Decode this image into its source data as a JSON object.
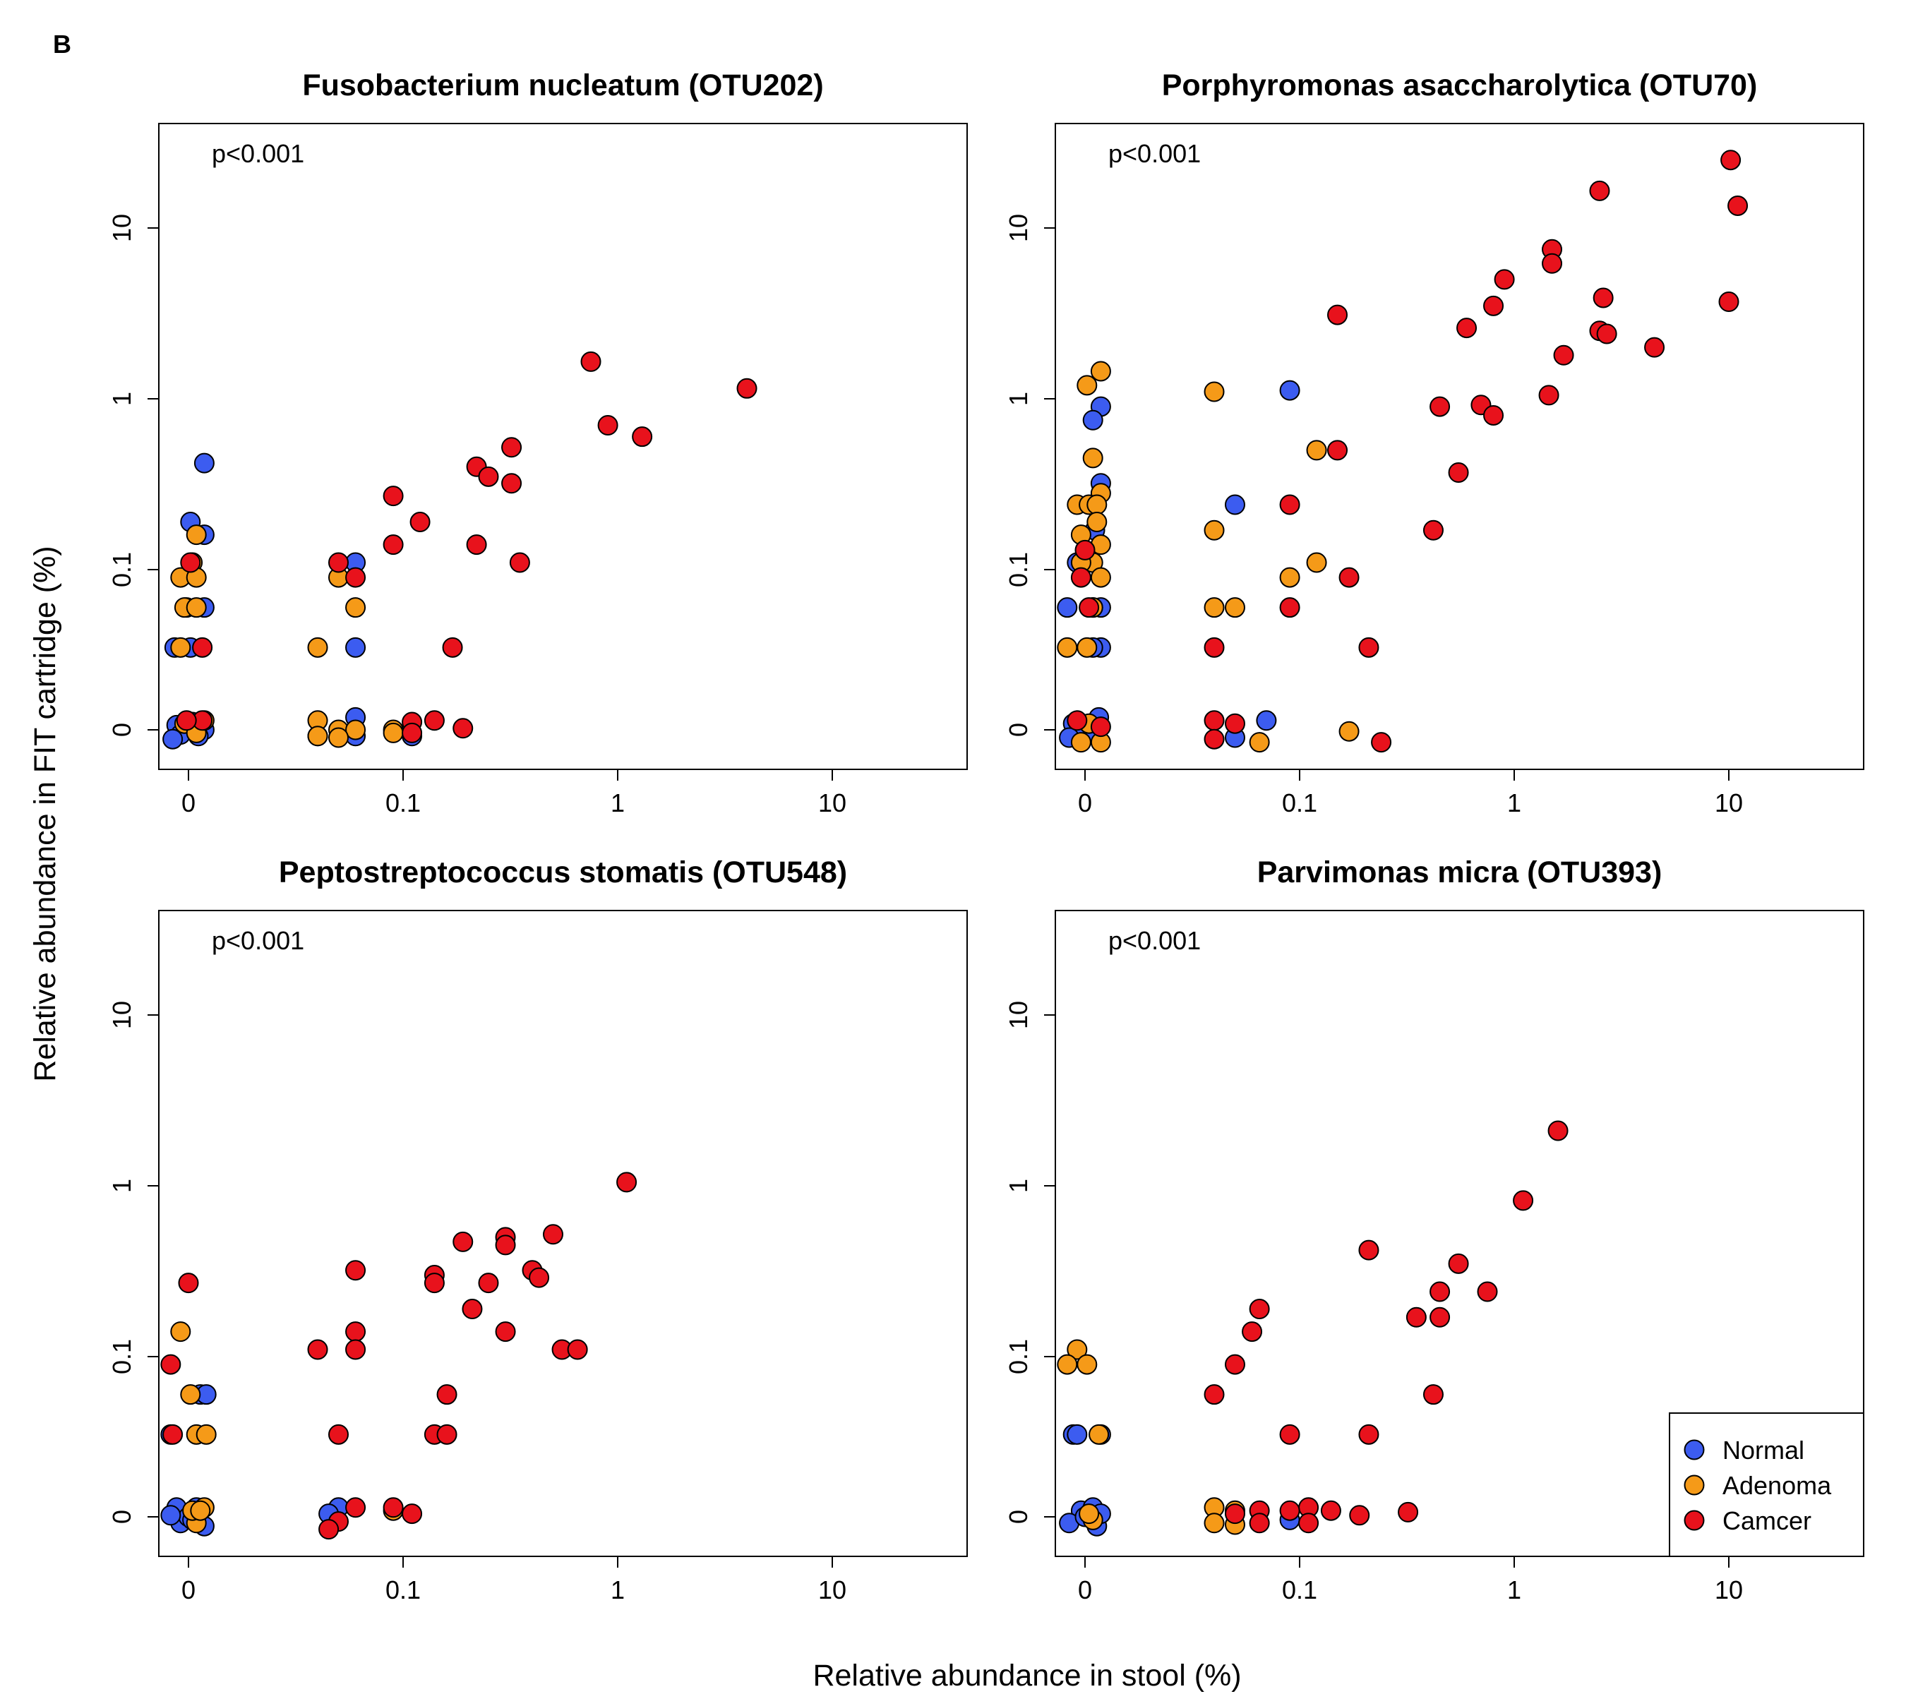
{
  "panel_label": "B",
  "xlabel": "Relative abundance in stool (%)",
  "ylabel": "Relative abundance in FIT cartridge (%)",
  "colors": {
    "Normal": "#3c5cf0",
    "Adenoma": "#f59a18",
    "Camcer": "#e8121c"
  },
  "legend": {
    "placement": "bottom-right of bottom-right panel",
    "items": [
      {
        "name": "Normal",
        "color": "#3c5cf0"
      },
      {
        "name": "Adenoma",
        "color": "#f59a18"
      },
      {
        "name": "Camcer",
        "color": "#e8121c"
      }
    ]
  },
  "chart_data": [
    {
      "type": "scatter",
      "title": "Fusobacterium nucleatum (OTU202)",
      "annotation": "p<0.001",
      "x_scale": "log",
      "y_scale": "log",
      "x_ticks": [
        "0",
        "0.1",
        "1",
        "10"
      ],
      "y_ticks": [
        "0",
        "0.1",
        "1",
        "10"
      ],
      "series": [
        {
          "name": "Normal",
          "points": [
            [
              0.008,
              0.42
            ],
            [
              0.001,
              0.19
            ],
            [
              0.008,
              0.16
            ],
            [
              -0.001,
              0.06
            ],
            [
              0.008,
              0.06
            ],
            [
              -0.007,
              0.035
            ],
            [
              0.001,
              0.035
            ],
            [
              0.06,
              0.11
            ],
            [
              0.06,
              0.035
            ],
            [
              0.06,
              0.008
            ],
            [
              -0.006,
              0.003
            ],
            [
              0,
              0
            ],
            [
              0.008,
              0
            ],
            [
              -0.004,
              -0.003
            ],
            [
              0.005,
              -0.004
            ],
            [
              0.04,
              -0.004
            ],
            [
              0.06,
              -0.004
            ],
            [
              0.11,
              -0.004
            ],
            [
              -0.008,
              -0.006
            ],
            [
              0.002,
              0.005
            ]
          ]
        },
        {
          "name": "Adenoma",
          "points": [
            [
              -0.004,
              0.09
            ],
            [
              0.002,
              0.11
            ],
            [
              0.004,
              0.16
            ],
            [
              -0.002,
              0.06
            ],
            [
              0.004,
              0.06
            ],
            [
              0.004,
              0.09
            ],
            [
              -0.004,
              0.035
            ],
            [
              0.04,
              0.035
            ],
            [
              0.05,
              0.09
            ],
            [
              0.06,
              0.06
            ],
            [
              0.04,
              0.006
            ],
            [
              0.05,
              0
            ],
            [
              0.06,
              0
            ],
            [
              0.09,
              0
            ],
            [
              0.09,
              -0.002
            ],
            [
              -0.002,
              0.004
            ],
            [
              0.004,
              -0.002
            ],
            [
              0.05,
              -0.005
            ],
            [
              0.04,
              -0.004
            ],
            [
              0.008,
              0.006
            ]
          ]
        },
        {
          "name": "Camcer",
          "points": [
            [
              0.75,
              1.65
            ],
            [
              4.0,
              1.15
            ],
            [
              0.9,
              0.7
            ],
            [
              1.3,
              0.6
            ],
            [
              0.32,
              0.52
            ],
            [
              0.22,
              0.4
            ],
            [
              0.25,
              0.35
            ],
            [
              0.32,
              0.32
            ],
            [
              0.09,
              0.27
            ],
            [
              0.12,
              0.19
            ],
            [
              0.09,
              0.14
            ],
            [
              0.22,
              0.14
            ],
            [
              0.35,
              0.11
            ],
            [
              0.05,
              0.11
            ],
            [
              0.06,
              0.09
            ],
            [
              0.001,
              0.11
            ],
            [
              0.17,
              0.035
            ],
            [
              0.007,
              0.035
            ],
            [
              0.11,
              0.005
            ],
            [
              0.14,
              0.006
            ],
            [
              0.19,
              0.001
            ],
            [
              0.11,
              -0.002
            ],
            [
              0.007,
              0.006
            ],
            [
              -0.001,
              0.006
            ]
          ]
        }
      ]
    },
    {
      "type": "scatter",
      "title": "Porphyromonas asaccharolytica (OTU70)",
      "annotation": "p<0.001",
      "x_scale": "log",
      "y_scale": "log",
      "x_ticks": [
        "0",
        "0.1",
        "1",
        "10"
      ],
      "y_ticks": [
        "0",
        "0.1",
        "1",
        "10"
      ],
      "series": [
        {
          "name": "Normal",
          "points": [
            [
              0.008,
              0.9
            ],
            [
              0.004,
              0.75
            ],
            [
              0.008,
              0.32
            ],
            [
              0.005,
              0.17
            ],
            [
              -0.004,
              0.11
            ],
            [
              -0.009,
              0.06
            ],
            [
              0.008,
              0.06
            ],
            [
              0.004,
              0.06
            ],
            [
              0.008,
              0.035
            ],
            [
              0.004,
              0.035
            ],
            [
              0.09,
              1.12
            ],
            [
              0.05,
              0.24
            ],
            [
              0.07,
              0.006
            ],
            [
              0.05,
              -0.005
            ],
            [
              -0.006,
              0.004
            ],
            [
              0.007,
              0.008
            ],
            [
              0,
              0
            ],
            [
              -0.008,
              -0.005
            ],
            [
              0.004,
              -0.002
            ]
          ]
        },
        {
          "name": "Adenoma",
          "points": [
            [
              0.008,
              1.45
            ],
            [
              0.001,
              1.2
            ],
            [
              0.004,
              0.45
            ],
            [
              0.04,
              1.1
            ],
            [
              0.008,
              0.28
            ],
            [
              -0.004,
              0.24
            ],
            [
              0.002,
              0.24
            ],
            [
              0.006,
              0.24
            ],
            [
              0.006,
              0.19
            ],
            [
              -0.002,
              0.16
            ],
            [
              0.008,
              0.14
            ],
            [
              0.004,
              0.11
            ],
            [
              -0.002,
              0.11
            ],
            [
              0.008,
              0.09
            ],
            [
              0.004,
              0.06
            ],
            [
              -0.009,
              0.035
            ],
            [
              0.001,
              0.035
            ],
            [
              0.04,
              0.17
            ],
            [
              0.05,
              0.06
            ],
            [
              0.04,
              0.06
            ],
            [
              0.12,
              0.5
            ],
            [
              0.12,
              0.11
            ],
            [
              0.09,
              0.09
            ],
            [
              0.17,
              -0.001
            ],
            [
              0.065,
              -0.008
            ],
            [
              -0.002,
              -0.008
            ],
            [
              0.008,
              -0.008
            ],
            [
              0.002,
              0.004
            ]
          ]
        },
        {
          "name": "Camcer",
          "points": [
            [
              10.2,
              25.0
            ],
            [
              2.5,
              16.5
            ],
            [
              11.0,
              13.5
            ],
            [
              1.5,
              7.5
            ],
            [
              1.5,
              6.2
            ],
            [
              0.9,
              5.0
            ],
            [
              2.6,
              3.9
            ],
            [
              0.8,
              3.5
            ],
            [
              10.0,
              3.7
            ],
            [
              0.15,
              3.1
            ],
            [
              0.6,
              2.6
            ],
            [
              2.5,
              2.5
            ],
            [
              2.7,
              2.4
            ],
            [
              4.5,
              2.0
            ],
            [
              1.7,
              1.8
            ],
            [
              1.45,
              1.05
            ],
            [
              0.45,
              0.9
            ],
            [
              0.7,
              0.92
            ],
            [
              0.8,
              0.8
            ],
            [
              0.15,
              0.5
            ],
            [
              0.55,
              0.37
            ],
            [
              0.09,
              0.24
            ],
            [
              0.42,
              0.17
            ],
            [
              0.17,
              0.09
            ],
            [
              0.09,
              0.06
            ],
            [
              0.04,
              0.035
            ],
            [
              0.21,
              0.035
            ],
            [
              0.0,
              0.13
            ],
            [
              -0.002,
              0.09
            ],
            [
              0.002,
              0.06
            ],
            [
              0.04,
              0.006
            ],
            [
              0.05,
              0.004
            ],
            [
              0.24,
              -0.008
            ],
            [
              0.04,
              -0.006
            ],
            [
              0.008,
              0.002
            ],
            [
              -0.004,
              0.006
            ]
          ]
        }
      ]
    },
    {
      "type": "scatter",
      "title": "Peptostreptococcus stomatis (OTU548)",
      "annotation": "p<0.001",
      "x_scale": "log",
      "y_scale": "log",
      "x_ticks": [
        "0",
        "0.1",
        "1",
        "10"
      ],
      "y_ticks": [
        "0",
        "0.1",
        "1",
        "10"
      ],
      "series": [
        {
          "name": "Normal",
          "points": [
            [
              0.006,
              0.06
            ],
            [
              0.009,
              0.06
            ],
            [
              -0.009,
              0.035
            ],
            [
              0.05,
              0.006
            ],
            [
              0.045,
              0.002
            ],
            [
              -0.006,
              0.006
            ],
            [
              -0.004,
              -0.004
            ],
            [
              0,
              0
            ],
            [
              0.006,
              0.004
            ],
            [
              0.008,
              -0.006
            ],
            [
              -0.009,
              0.001
            ],
            [
              0.002,
              -0.002
            ],
            [
              0.004,
              0.006
            ]
          ]
        },
        {
          "name": "Adenoma",
          "points": [
            [
              -0.004,
              0.14
            ],
            [
              0.001,
              0.06
            ],
            [
              0.004,
              0.035
            ],
            [
              0.009,
              0.035
            ],
            [
              0.008,
              0.006
            ],
            [
              0.09,
              0.004
            ],
            [
              0.004,
              -0.004
            ],
            [
              0.002,
              0.004
            ],
            [
              0.006,
              0.004
            ]
          ]
        },
        {
          "name": "Camcer",
          "points": [
            [
              1.1,
              1.05
            ],
            [
              0.5,
              0.52
            ],
            [
              0.3,
              0.5
            ],
            [
              0.19,
              0.47
            ],
            [
              0.3,
              0.45
            ],
            [
              0.4,
              0.32
            ],
            [
              0.06,
              0.32
            ],
            [
              0.14,
              0.3
            ],
            [
              0.14,
              0.27
            ],
            [
              0.25,
              0.27
            ],
            [
              0.43,
              0.29
            ],
            [
              0.21,
              0.19
            ],
            [
              0.06,
              0.14
            ],
            [
              0.3,
              0.14
            ],
            [
              0.04,
              0.11
            ],
            [
              0.06,
              0.11
            ],
            [
              0.55,
              0.11
            ],
            [
              0.65,
              0.11
            ],
            [
              0.0,
              0.27
            ],
            [
              -0.009,
              0.09
            ],
            [
              0.16,
              0.06
            ],
            [
              0.14,
              0.035
            ],
            [
              0.16,
              0.035
            ],
            [
              0.05,
              0.035
            ],
            [
              -0.008,
              0.035
            ],
            [
              0.06,
              0.006
            ],
            [
              0.09,
              0.006
            ],
            [
              0.11,
              0.002
            ],
            [
              0.05,
              -0.003
            ],
            [
              0.045,
              -0.008
            ]
          ]
        }
      ]
    },
    {
      "type": "scatter",
      "title": "Parvimonas micra (OTU393)",
      "annotation": "p<0.001",
      "x_scale": "log",
      "y_scale": "log",
      "x_ticks": [
        "0",
        "0.1",
        "1",
        "10"
      ],
      "y_ticks": [
        "0",
        "0.1",
        "1",
        "10"
      ],
      "series": [
        {
          "name": "Normal",
          "points": [
            [
              -0.006,
              0.035
            ],
            [
              -0.004,
              0.035
            ],
            [
              0.008,
              0.035
            ],
            [
              0.09,
              -0.002
            ],
            [
              -0.002,
              0.004
            ],
            [
              0.004,
              0.006
            ],
            [
              -0.008,
              -0.004
            ],
            [
              0,
              0
            ],
            [
              0.006,
              -0.006
            ],
            [
              0.008,
              0.002
            ]
          ]
        },
        {
          "name": "Adenoma",
          "points": [
            [
              -0.004,
              0.11
            ],
            [
              -0.009,
              0.09
            ],
            [
              0.001,
              0.09
            ],
            [
              0.007,
              0.035
            ],
            [
              0.04,
              0.006
            ],
            [
              0.05,
              0.004
            ],
            [
              0.04,
              -0.004
            ],
            [
              0.05,
              -0.005
            ],
            [
              0.004,
              -0.002
            ],
            [
              0.002,
              0.002
            ]
          ]
        },
        {
          "name": "Camcer",
          "points": [
            [
              1.6,
              2.1
            ],
            [
              1.1,
              0.82
            ],
            [
              0.21,
              0.42
            ],
            [
              0.55,
              0.35
            ],
            [
              0.45,
              0.24
            ],
            [
              0.75,
              0.24
            ],
            [
              0.065,
              0.19
            ],
            [
              0.06,
              0.14
            ],
            [
              0.35,
              0.17
            ],
            [
              0.45,
              0.17
            ],
            [
              0.05,
              0.09
            ],
            [
              0.04,
              0.06
            ],
            [
              0.42,
              0.06
            ],
            [
              0.09,
              0.035
            ],
            [
              0.21,
              0.035
            ],
            [
              0.11,
              0.006
            ],
            [
              0.065,
              0.004
            ],
            [
              0.14,
              0.004
            ],
            [
              0.19,
              0.001
            ],
            [
              0.32,
              0.003
            ],
            [
              0.05,
              0.002
            ],
            [
              0.065,
              -0.004
            ],
            [
              0.11,
              -0.004
            ],
            [
              0.09,
              0.004
            ]
          ]
        }
      ]
    }
  ]
}
